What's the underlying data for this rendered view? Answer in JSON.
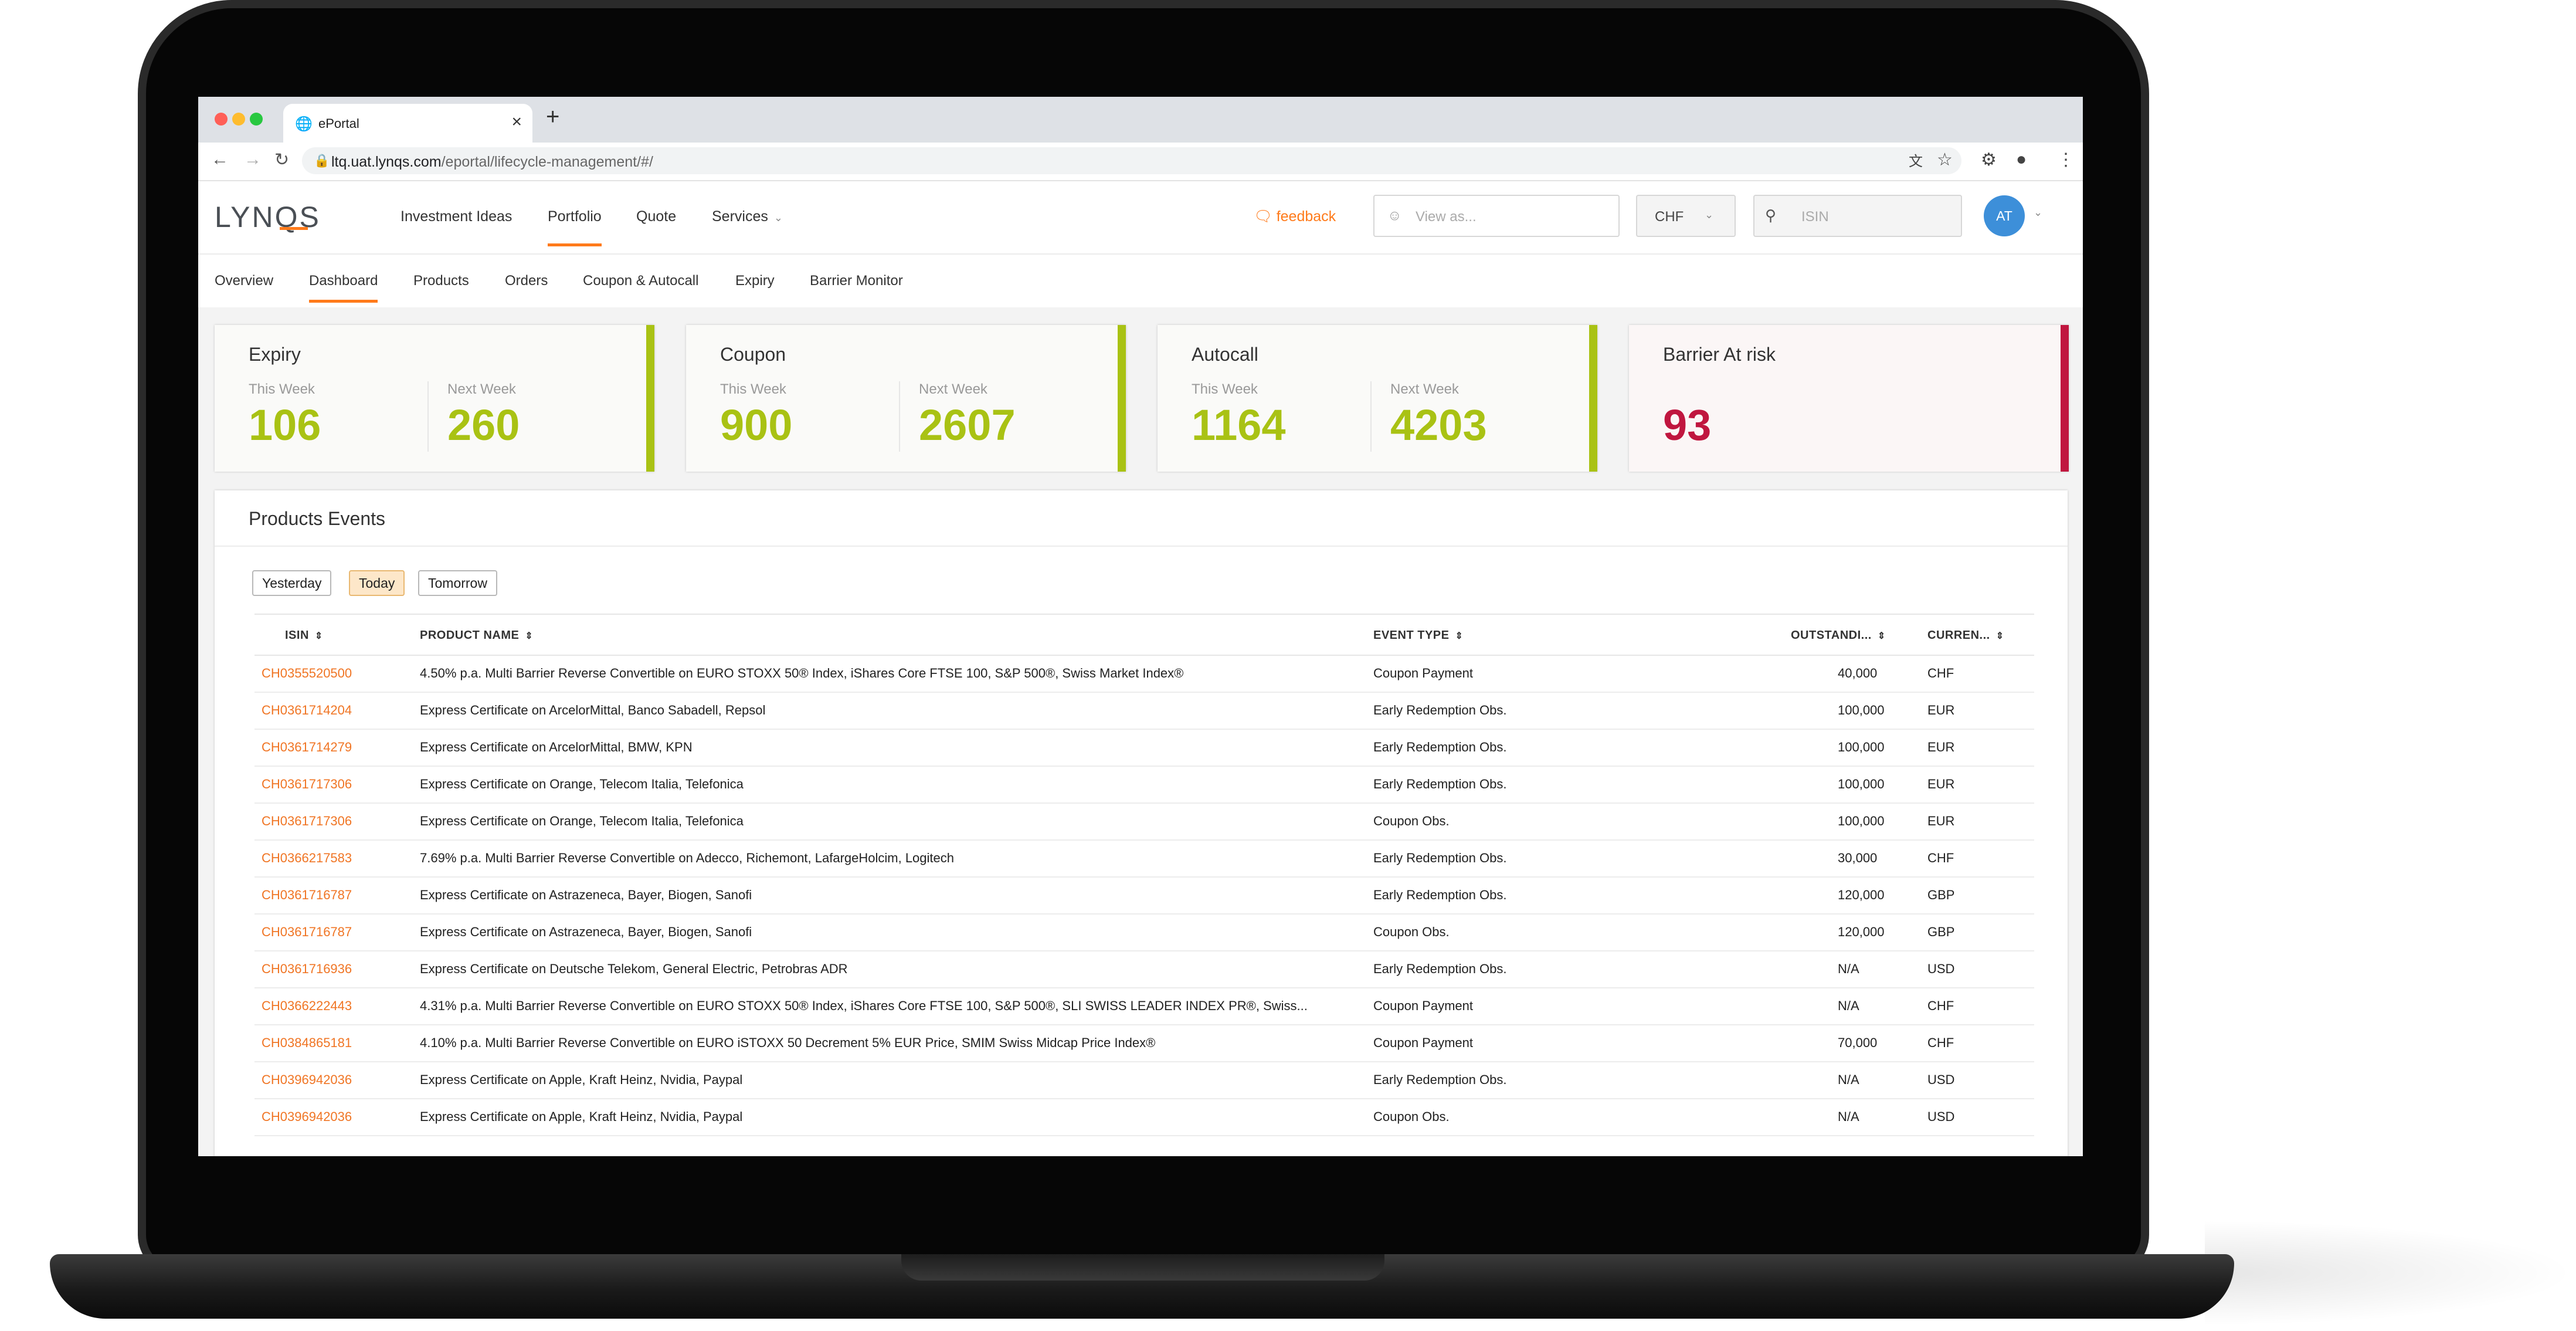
{
  "browser": {
    "tab_title": "ePortal",
    "url_host": "ltq.uat.lynqs.com",
    "url_path": "/eportal/lifecycle-management/#/"
  },
  "app": {
    "logo_prefix": "LYN",
    "logo_q": "Q",
    "logo_suffix": "S",
    "nav": [
      {
        "label": "Investment Ideas"
      },
      {
        "label": "Portfolio"
      },
      {
        "label": "Quote"
      },
      {
        "label": "Services"
      }
    ],
    "feedback_label": "feedback",
    "view_as_placeholder": "View as...",
    "currency": "CHF",
    "search_placeholder": "ISIN",
    "avatar_initials": "AT"
  },
  "subnav": [
    "Overview",
    "Dashboard",
    "Products",
    "Orders",
    "Coupon & Autocall",
    "Expiry",
    "Barrier Monitor"
  ],
  "kpis": [
    {
      "title": "Expiry",
      "this_week_label": "This Week",
      "this_week": "106",
      "next_week_label": "Next Week",
      "next_week": "260"
    },
    {
      "title": "Coupon",
      "this_week_label": "This Week",
      "this_week": "900",
      "next_week_label": "Next Week",
      "next_week": "2607"
    },
    {
      "title": "Autocall",
      "this_week_label": "This Week",
      "this_week": "1164",
      "next_week_label": "Next Week",
      "next_week": "4203"
    },
    {
      "title": "Barrier At risk",
      "value": "93"
    }
  ],
  "events": {
    "title": "Products Events",
    "filters": [
      "Yesterday",
      "Today",
      "Tomorrow"
    ],
    "active_filter": "Today",
    "columns": [
      "ISIN",
      "PRODUCT NAME",
      "EVENT TYPE",
      "OUTSTANDI...",
      "CURREN..."
    ],
    "rows": [
      {
        "isin": "CH0355520500",
        "name": "4.50% p.a. Multi Barrier Reverse Convertible on EURO STOXX 50® Index, iShares Core FTSE 100, S&P 500®, Swiss Market Index®",
        "event": "Coupon Payment",
        "outstanding": "40,000",
        "currency": "CHF"
      },
      {
        "isin": "CH0361714204",
        "name": "Express Certificate on ArcelorMittal, Banco Sabadell, Repsol",
        "event": "Early Redemption Obs.",
        "outstanding": "100,000",
        "currency": "EUR"
      },
      {
        "isin": "CH0361714279",
        "name": "Express Certificate on ArcelorMittal, BMW, KPN",
        "event": "Early Redemption Obs.",
        "outstanding": "100,000",
        "currency": "EUR"
      },
      {
        "isin": "CH0361717306",
        "name": "Express Certificate on Orange, Telecom Italia, Telefonica",
        "event": "Early Redemption Obs.",
        "outstanding": "100,000",
        "currency": "EUR"
      },
      {
        "isin": "CH0361717306",
        "name": "Express Certificate on Orange, Telecom Italia, Telefonica",
        "event": "Coupon Obs.",
        "outstanding": "100,000",
        "currency": "EUR"
      },
      {
        "isin": "CH0366217583",
        "name": "7.69% p.a. Multi Barrier Reverse Convertible on Adecco, Richemont, LafargeHolcim, Logitech",
        "event": "Early Redemption Obs.",
        "outstanding": "30,000",
        "currency": "CHF"
      },
      {
        "isin": "CH0361716787",
        "name": "Express Certificate on Astrazeneca, Bayer, Biogen, Sanofi",
        "event": "Early Redemption Obs.",
        "outstanding": "120,000",
        "currency": "GBP"
      },
      {
        "isin": "CH0361716787",
        "name": "Express Certificate on Astrazeneca, Bayer, Biogen, Sanofi",
        "event": "Coupon Obs.",
        "outstanding": "120,000",
        "currency": "GBP"
      },
      {
        "isin": "CH0361716936",
        "name": "Express Certificate on Deutsche Telekom, General Electric, Petrobras ADR",
        "event": "Early Redemption Obs.",
        "outstanding": "N/A",
        "currency": "USD"
      },
      {
        "isin": "CH0366222443",
        "name": "4.31% p.a. Multi Barrier Reverse Convertible on EURO STOXX 50® Index, iShares Core FTSE 100, S&P 500®, SLI SWISS LEADER INDEX PR®, Swiss...",
        "event": "Coupon Payment",
        "outstanding": "N/A",
        "currency": "CHF"
      },
      {
        "isin": "CH0384865181",
        "name": "4.10% p.a. Multi Barrier Reverse Convertible on EURO iSTOXX 50 Decrement 5% EUR Price, SMIM Swiss Midcap Price Index®",
        "event": "Coupon Payment",
        "outstanding": "70,000",
        "currency": "CHF"
      },
      {
        "isin": "CH0396942036",
        "name": "Express Certificate on Apple, Kraft Heinz, Nvidia, Paypal",
        "event": "Early Redemption Obs.",
        "outstanding": "N/A",
        "currency": "USD"
      },
      {
        "isin": "CH0396942036",
        "name": "Express Certificate on Apple, Kraft Heinz, Nvidia, Paypal",
        "event": "Coupon Obs.",
        "outstanding": "N/A",
        "currency": "USD"
      }
    ]
  },
  "colors": {
    "accent": "#ff7a1a",
    "kpi_green": "#a9c214",
    "risk_red": "#c0163f",
    "avatar_blue": "#3d8fd9"
  }
}
